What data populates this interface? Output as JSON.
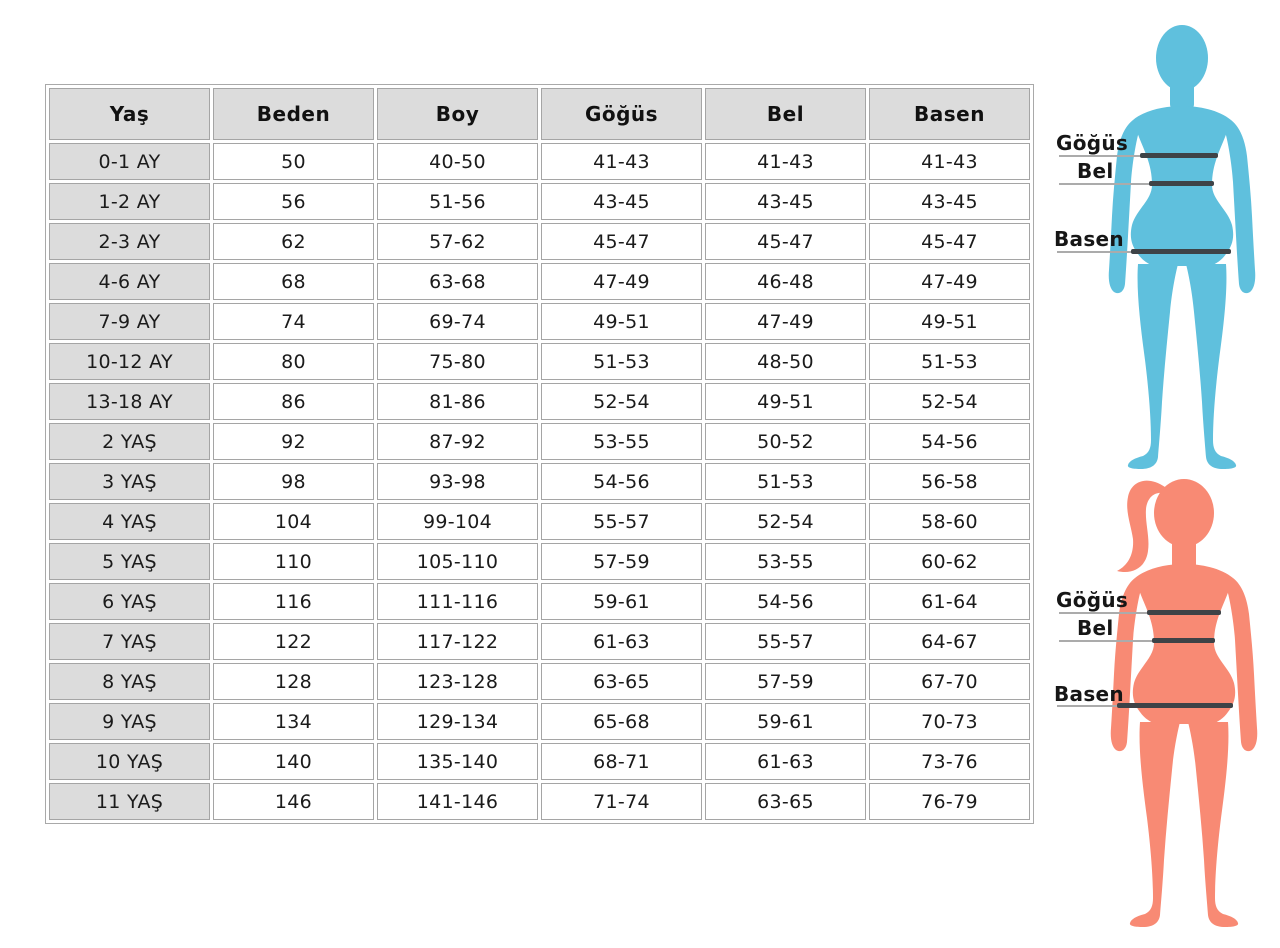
{
  "chart_data": {
    "type": "table",
    "columns": [
      "Yaş",
      "Beden",
      "Boy",
      "Göğüs",
      "Bel",
      "Basen"
    ],
    "rows": [
      [
        "0-1 AY",
        "50",
        "40-50",
        "41-43",
        "41-43",
        "41-43"
      ],
      [
        "1-2 AY",
        "56",
        "51-56",
        "43-45",
        "43-45",
        "43-45"
      ],
      [
        "2-3 AY",
        "62",
        "57-62",
        "45-47",
        "45-47",
        "45-47"
      ],
      [
        "4-6 AY",
        "68",
        "63-68",
        "47-49",
        "46-48",
        "47-49"
      ],
      [
        "7-9 AY",
        "74",
        "69-74",
        "49-51",
        "47-49",
        "49-51"
      ],
      [
        "10-12 AY",
        "80",
        "75-80",
        "51-53",
        "48-50",
        "51-53"
      ],
      [
        "13-18 AY",
        "86",
        "81-86",
        "52-54",
        "49-51",
        "52-54"
      ],
      [
        "2 YAŞ",
        "92",
        "87-92",
        "53-55",
        "50-52",
        "54-56"
      ],
      [
        "3 YAŞ",
        "98",
        "93-98",
        "54-56",
        "51-53",
        "56-58"
      ],
      [
        "4 YAŞ",
        "104",
        "99-104",
        "55-57",
        "52-54",
        "58-60"
      ],
      [
        "5 YAŞ",
        "110",
        "105-110",
        "57-59",
        "53-55",
        "60-62"
      ],
      [
        "6 YAŞ",
        "116",
        "111-116",
        "59-61",
        "54-56",
        "61-64"
      ],
      [
        "7 YAŞ",
        "122",
        "117-122",
        "61-63",
        "55-57",
        "64-67"
      ],
      [
        "8 YAŞ",
        "128",
        "123-128",
        "63-65",
        "57-59",
        "67-70"
      ],
      [
        "9 YAŞ",
        "134",
        "129-134",
        "65-68",
        "59-61",
        "70-73"
      ],
      [
        "10 YAŞ",
        "140",
        "135-140",
        "68-71",
        "61-63",
        "73-76"
      ],
      [
        "11 YAŞ",
        "146",
        "141-146",
        "71-74",
        "63-65",
        "76-79"
      ]
    ]
  },
  "figures": {
    "line_color": "#3e4347",
    "adult": {
      "color": "#5fc0dd",
      "chest_label": "Göğüs",
      "waist_label": "Bel",
      "hip_label": "Basen"
    },
    "child": {
      "color": "#f88a74",
      "chest_label": "Göğüs",
      "waist_label": "Bel",
      "hip_label": "Basen"
    }
  },
  "colors": {
    "header_bg": "#dcdcdc",
    "cell_border": "#a5a5a5",
    "text": "#1b1b1b",
    "leader_line": "#ababab"
  }
}
